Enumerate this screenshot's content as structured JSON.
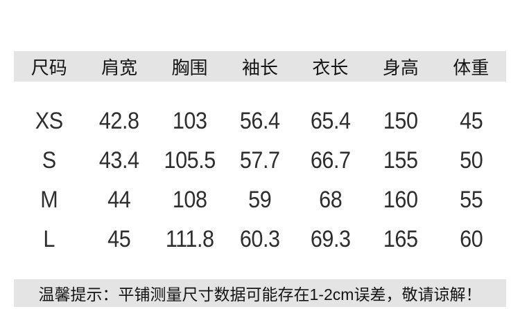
{
  "colors": {
    "band_bg": "#e4e4e4",
    "header_text": "#141414",
    "value_text": "#2e2e2e",
    "page_bg": "#ffffff"
  },
  "chart_data": {
    "type": "table",
    "title": "",
    "columns": [
      "尺码",
      "肩宽",
      "胸围",
      "袖长",
      "衣长",
      "身高",
      "体重"
    ],
    "rows": [
      [
        "XS",
        "42.8",
        "103",
        "56.4",
        "65.4",
        "150",
        "45"
      ],
      [
        "S",
        "43.4",
        "105.5",
        "57.7",
        "66.7",
        "155",
        "50"
      ],
      [
        "M",
        "44",
        "108",
        "59",
        "68",
        "160",
        "55"
      ],
      [
        "L",
        "45",
        "111.8",
        "60.3",
        "69.3",
        "165",
        "60"
      ]
    ],
    "note": "温馨提示：平铺测量尺寸数据可能存在1-2cm误差，敬请谅解！"
  }
}
